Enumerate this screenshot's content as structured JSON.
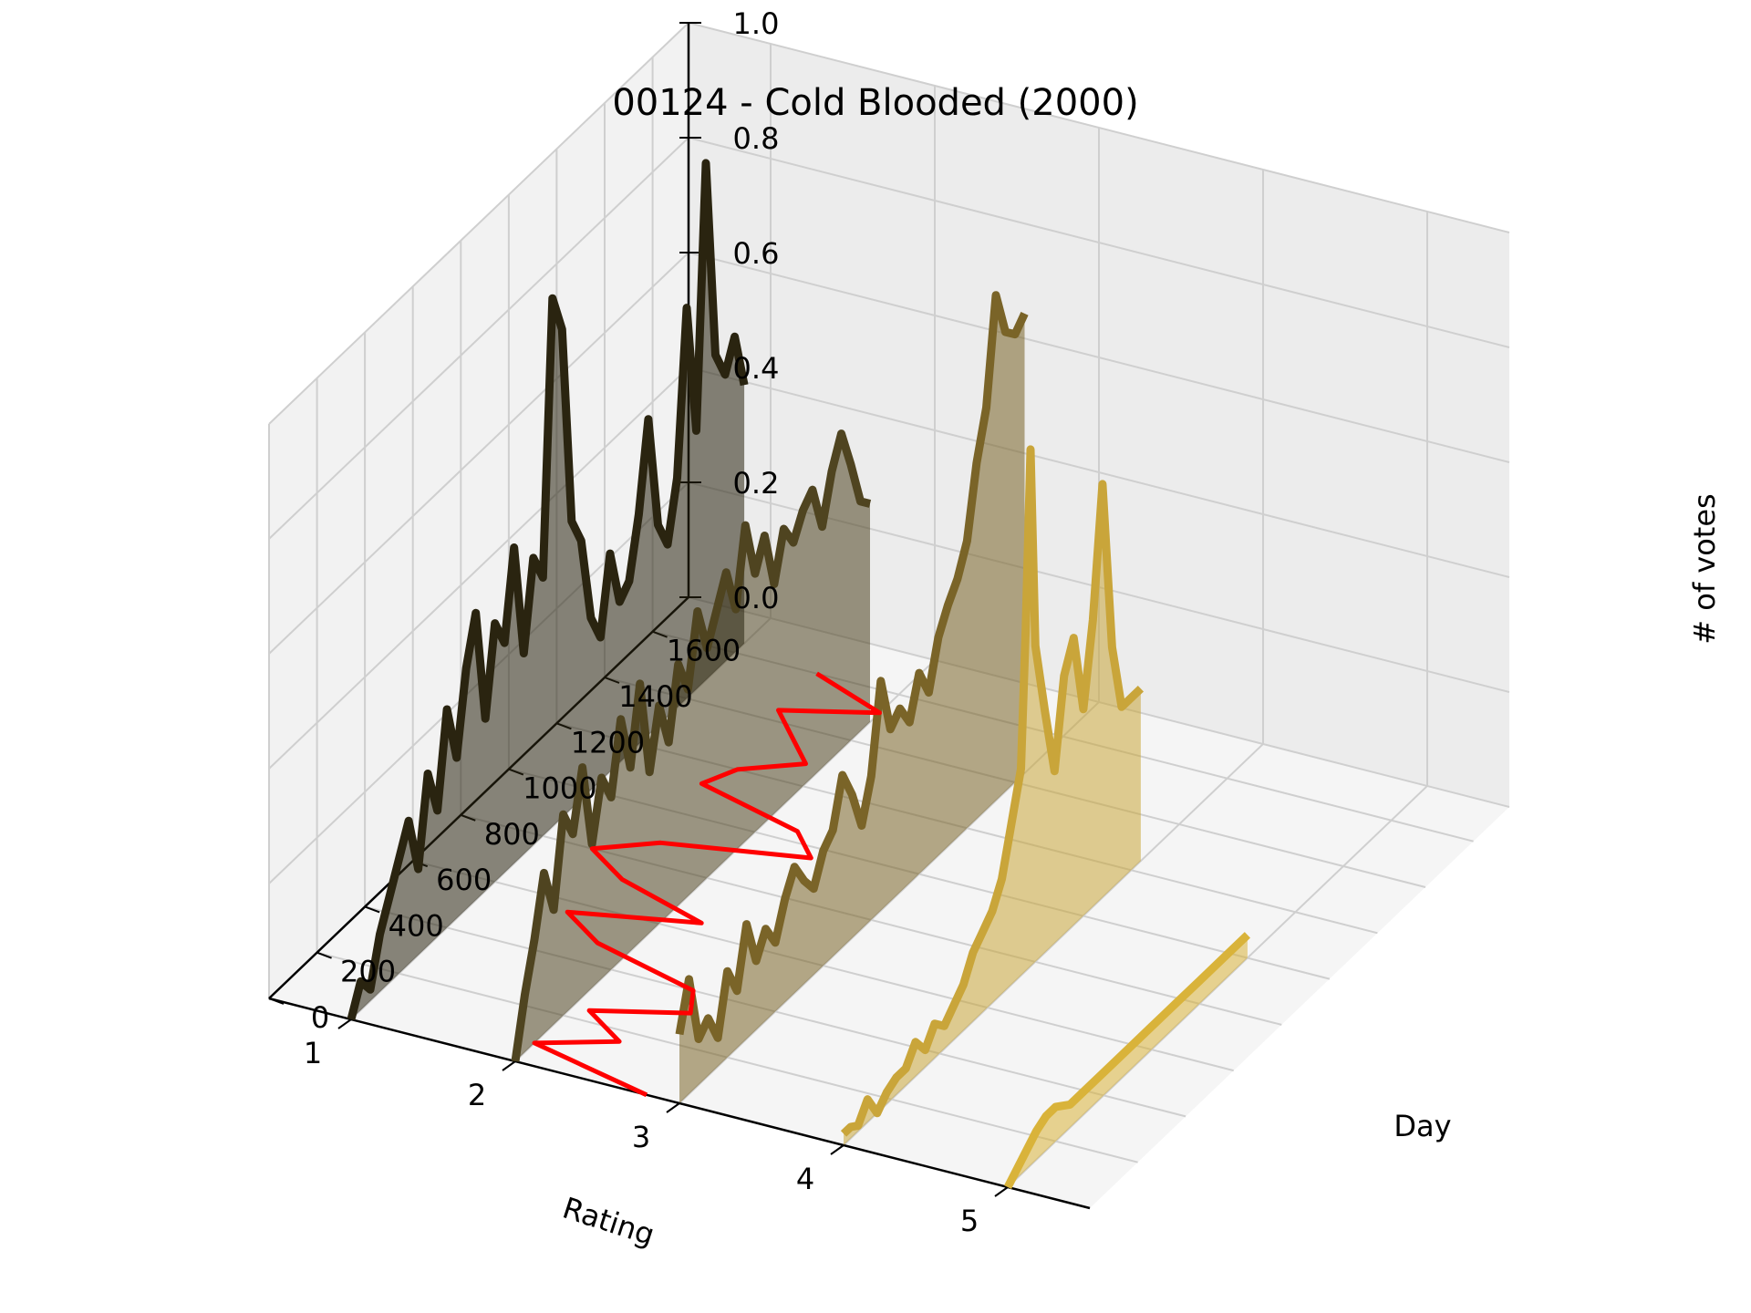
{
  "chart_data": {
    "type": "3d-line",
    "title": "00124 - Cold Blooded (2000)",
    "xlabel": "Rating",
    "ylabel": "Day",
    "zlabel": "# of votes",
    "x_ticks": [
      "5",
      "4",
      "3",
      "2",
      "1"
    ],
    "y_ticks": [
      "0",
      "200",
      "400",
      "600",
      "800",
      "1000",
      "1200",
      "1400",
      "1600"
    ],
    "z_ticks": [
      "0.0",
      "0.2",
      "0.4",
      "0.6",
      "0.8",
      "1.0"
    ],
    "xlim": [
      0.5,
      5.5
    ],
    "ylim": [
      0,
      1750
    ],
    "zlim": [
      0,
      1.0
    ],
    "grid": true,
    "series": [
      {
        "rating": 5,
        "color": "#d9b33a",
        "days": [
          0,
          120,
          160,
          200,
          260,
          320,
          400,
          500,
          600,
          700,
          800,
          900,
          1000
        ],
        "votes": [
          0.0,
          0.05,
          0.06,
          0.06,
          0.04,
          0.04,
          0.04,
          0.04,
          0.04,
          0.04,
          0.04,
          0.04,
          0.04
        ]
      },
      {
        "rating": 4,
        "color": "#c9a53a",
        "days": [
          0,
          30,
          60,
          100,
          140,
          180,
          220,
          260,
          300,
          340,
          380,
          420,
          460,
          500,
          540,
          580,
          620,
          660,
          700,
          740,
          760,
          780,
          800,
          840,
          880,
          920,
          960,
          1000,
          1040,
          1080,
          1120,
          1160,
          1200,
          1240
        ],
        "votes": [
          0.02,
          0.02,
          0.01,
          0.04,
          0.0,
          0.02,
          0.03,
          0.03,
          0.06,
          0.03,
          0.06,
          0.04,
          0.06,
          0.08,
          0.12,
          0.14,
          0.16,
          0.2,
          0.28,
          0.36,
          0.6,
          0.9,
          0.55,
          0.42,
          0.3,
          0.45,
          0.5,
          0.36,
          0.5,
          0.72,
          0.42,
          0.3,
          0.3,
          0.3
        ]
      },
      {
        "rating": 3,
        "color": "#7a6428",
        "days": [
          0,
          40,
          80,
          120,
          160,
          200,
          240,
          280,
          320,
          360,
          400,
          440,
          480,
          520,
          560,
          600,
          640,
          680,
          720,
          760,
          800,
          840,
          880,
          920,
          960,
          1000,
          1040,
          1080,
          1120,
          1160,
          1200,
          1240,
          1280,
          1320,
          1360,
          1400,
          1440
        ],
        "votes": [
          0.12,
          0.2,
          0.08,
          0.1,
          0.05,
          0.15,
          0.1,
          0.2,
          0.12,
          0.16,
          0.12,
          0.18,
          0.22,
          0.18,
          0.15,
          0.2,
          0.22,
          0.3,
          0.25,
          0.18,
          0.25,
          0.4,
          0.3,
          0.32,
          0.28,
          0.35,
          0.3,
          0.38,
          0.42,
          0.45,
          0.5,
          0.62,
          0.7,
          0.88,
          0.8,
          0.78,
          0.8
        ]
      },
      {
        "rating": 2,
        "color": "#4f4420",
        "days": [
          0,
          40,
          80,
          120,
          160,
          200,
          240,
          280,
          320,
          360,
          400,
          440,
          480,
          520,
          560,
          600,
          640,
          680,
          720,
          760,
          800,
          840,
          880,
          920,
          960,
          1000,
          1040,
          1080,
          1120,
          1160,
          1200,
          1240,
          1280,
          1320,
          1360,
          1400,
          1440,
          1480
        ],
        "votes": [
          0.0,
          0.1,
          0.18,
          0.28,
          0.2,
          0.35,
          0.3,
          0.4,
          0.25,
          0.35,
          0.3,
          0.42,
          0.32,
          0.45,
          0.28,
          0.38,
          0.3,
          0.42,
          0.36,
          0.48,
          0.4,
          0.45,
          0.5,
          0.42,
          0.55,
          0.45,
          0.5,
          0.4,
          0.48,
          0.44,
          0.48,
          0.5,
          0.42,
          0.5,
          0.55,
          0.48,
          0.4,
          0.38
        ]
      },
      {
        "rating": 1,
        "color": "#2a2410",
        "days": [
          0,
          40,
          80,
          120,
          160,
          200,
          240,
          280,
          320,
          360,
          400,
          440,
          480,
          520,
          560,
          600,
          640,
          680,
          720,
          760,
          800,
          840,
          880,
          920,
          960,
          1000,
          1040,
          1080,
          1120,
          1160,
          1200,
          1240,
          1280,
          1320,
          1360,
          1400,
          1440,
          1480,
          1520,
          1560,
          1600,
          1640
        ],
        "votes": [
          0.0,
          0.05,
          0.02,
          0.1,
          0.15,
          0.2,
          0.25,
          0.15,
          0.3,
          0.22,
          0.38,
          0.28,
          0.42,
          0.5,
          0.3,
          0.45,
          0.4,
          0.55,
          0.35,
          0.5,
          0.45,
          0.92,
          0.85,
          0.5,
          0.45,
          0.3,
          0.25,
          0.38,
          0.28,
          0.3,
          0.4,
          0.55,
          0.35,
          0.3,
          0.4,
          0.68,
          0.45,
          0.9,
          0.55,
          0.5,
          0.55,
          0.45
        ]
      }
    ],
    "mean_trace": {
      "color": "#ff0000",
      "days": [
        0,
        80,
        160,
        240,
        320,
        400,
        480,
        560,
        640,
        720,
        800,
        880,
        960,
        1040,
        1120,
        1200,
        1280,
        1360,
        1440,
        1520,
        1600
      ],
      "rating": [
        2.8,
        2.0,
        2.4,
        2.1,
        2.6,
        2.5,
        1.8,
        1.5,
        2.2,
        1.6,
        1.3,
        1.6,
        2.4,
        2.2,
        1.5,
        1.6,
        1.9,
        1.7,
        1.5,
        2.0,
        1.5
      ]
    }
  }
}
